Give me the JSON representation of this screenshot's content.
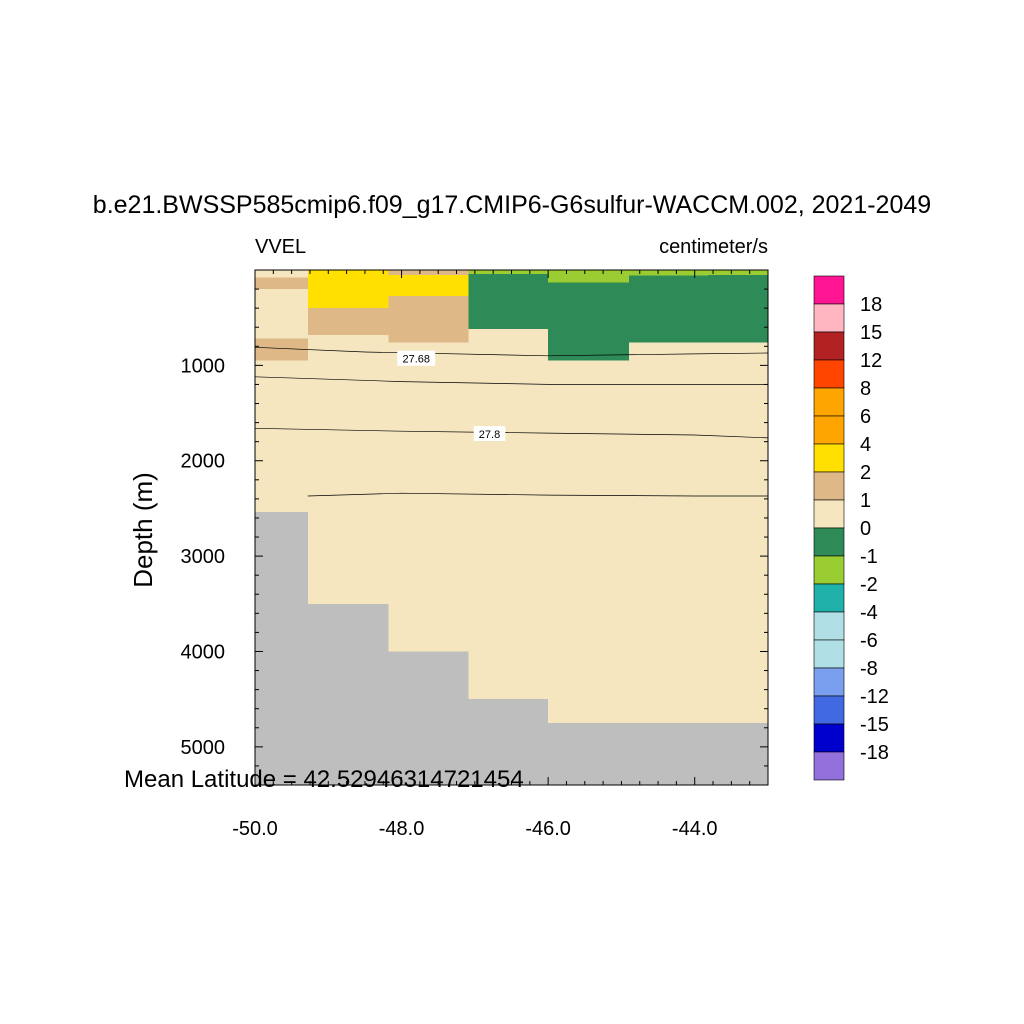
{
  "chart_data": {
    "type": "heatmap",
    "title": "b.e21.BWSSP585cmip6.f09_g17.CMIP6-G6sulfur-WACCM.002, 2021-2049",
    "left_string": "VVEL",
    "right_string": "centimeter/s",
    "ylabel": "Depth (m)",
    "xlabel": "",
    "annotation": "Mean Latitude = 42.52946314721454",
    "xlim": [
      -50.0,
      -43.0
    ],
    "ylim": [
      5400,
      0
    ],
    "y_reversed": true,
    "x_ticks": [
      -50.0,
      -48.0,
      -46.0,
      -44.0
    ],
    "x_tick_labels": [
      "-50.0",
      "-48.0",
      "-46.0",
      "-44.0"
    ],
    "y_ticks": [
      1000,
      2000,
      3000,
      4000,
      5000
    ],
    "y_tick_labels": [
      "1000",
      "2000",
      "3000",
      "4000",
      "5000"
    ],
    "colorbar": {
      "labels": [
        "18",
        "15",
        "12",
        "8",
        "6",
        "4",
        "2",
        "1",
        "0",
        "-1",
        "-2",
        "-4",
        "-6",
        "-8",
        "-12",
        "-15",
        "-18"
      ],
      "colors": [
        "#FF1493",
        "#FFB6C1",
        "#B22222",
        "#FF4500",
        "#FFA500",
        "#FFA500",
        "#FFE000",
        "#DEB887",
        "#F5E6C0",
        "#2E8B57",
        "#9ACD32",
        "#20B2AA",
        "#B0E0E6",
        "#B0E0E6",
        "#7B9FEF",
        "#4169E1",
        "#0000CD",
        "#9370DB"
      ]
    },
    "missing_color": "#BEBEBE",
    "cells": [
      {
        "x0": -50.0,
        "x1": -49.28,
        "y0": 0,
        "y1": 80,
        "color": "#F5E6C0"
      },
      {
        "x0": -50.0,
        "x1": -49.28,
        "y0": 80,
        "y1": 200,
        "color": "#DEB887"
      },
      {
        "x0": -50.0,
        "x1": -49.28,
        "y0": 200,
        "y1": 720,
        "color": "#F5E6C0"
      },
      {
        "x0": -50.0,
        "x1": -49.28,
        "y0": 720,
        "y1": 950,
        "color": "#DEB887"
      },
      {
        "x0": -49.28,
        "x1": -48.18,
        "y0": 0,
        "y1": 400,
        "color": "#FFE000"
      },
      {
        "x0": -49.28,
        "x1": -48.18,
        "y0": 400,
        "y1": 680,
        "color": "#DEB887"
      },
      {
        "x0": -48.18,
        "x1": -47.09,
        "y0": 0,
        "y1": 50,
        "color": "#DEB887"
      },
      {
        "x0": -48.18,
        "x1": -47.09,
        "y0": 50,
        "y1": 270,
        "color": "#FFE000"
      },
      {
        "x0": -48.18,
        "x1": -47.09,
        "y0": 270,
        "y1": 760,
        "color": "#DEB887"
      },
      {
        "x0": -47.09,
        "x1": -46.0,
        "y0": 0,
        "y1": 40,
        "color": "#9ACD32"
      },
      {
        "x0": -47.09,
        "x1": -46.0,
        "y0": 40,
        "y1": 620,
        "color": "#2E8B57"
      },
      {
        "x0": -46.0,
        "x1": -44.9,
        "y0": 0,
        "y1": 130,
        "color": "#9ACD32"
      },
      {
        "x0": -46.0,
        "x1": -44.9,
        "y0": 130,
        "y1": 950,
        "color": "#2E8B57"
      },
      {
        "x0": -44.9,
        "x1": -43.82,
        "y0": 0,
        "y1": 60,
        "color": "#9ACD32"
      },
      {
        "x0": -44.9,
        "x1": -43.82,
        "y0": 60,
        "y1": 760,
        "color": "#2E8B57"
      },
      {
        "x0": -43.82,
        "x1": -43.0,
        "y0": 0,
        "y1": 50,
        "color": "#9ACD32"
      },
      {
        "x0": -43.82,
        "x1": -43.0,
        "y0": 50,
        "y1": 760,
        "color": "#2E8B57"
      }
    ],
    "bathymetry": [
      {
        "x0": -50.0,
        "x1": -49.28,
        "depth": 2540
      },
      {
        "x0": -49.28,
        "x1": -48.18,
        "depth": 3500
      },
      {
        "x0": -48.18,
        "x1": -47.09,
        "depth": 4000
      },
      {
        "x0": -47.09,
        "x1": -46.0,
        "depth": 4500
      },
      {
        "x0": -46.0,
        "x1": -43.0,
        "depth": 4750
      }
    ],
    "contours": [
      {
        "label": "27.68",
        "label_at": [
          -47.8,
          930
        ],
        "points": [
          [
            -50.0,
            810
          ],
          [
            -48.5,
            860
          ],
          [
            -46.0,
            900
          ],
          [
            -44.0,
            880
          ],
          [
            -43.0,
            870
          ]
        ]
      },
      {
        "label": "",
        "points": [
          [
            -50.0,
            1120
          ],
          [
            -48.0,
            1170
          ],
          [
            -46.0,
            1200
          ],
          [
            -44.0,
            1200
          ],
          [
            -43.0,
            1200
          ]
        ]
      },
      {
        "label": "27.8",
        "label_at": [
          -46.8,
          1720
        ],
        "points": [
          [
            -50.0,
            1660
          ],
          [
            -48.0,
            1690
          ],
          [
            -46.0,
            1710
          ],
          [
            -44.0,
            1730
          ],
          [
            -43.0,
            1760
          ]
        ]
      },
      {
        "label": "",
        "points": [
          [
            -49.28,
            2370
          ],
          [
            -48.0,
            2340
          ],
          [
            -46.0,
            2360
          ],
          [
            -44.0,
            2370
          ],
          [
            -43.0,
            2370
          ]
        ]
      }
    ]
  }
}
